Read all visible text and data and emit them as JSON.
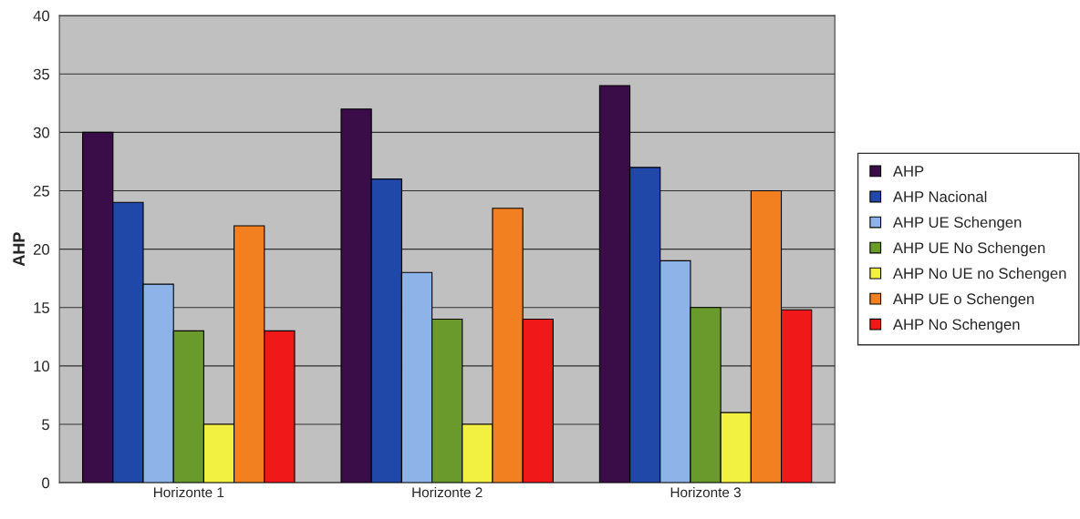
{
  "chart_data": {
    "type": "bar",
    "ylabel": "AHP",
    "categories": [
      "Horizonte 1",
      "Horizonte 2",
      "Horizonte 3"
    ],
    "series": [
      {
        "name": "AHP",
        "color": "#3a0c48",
        "values": [
          30,
          32,
          34
        ]
      },
      {
        "name": "AHP Nacional",
        "color": "#1f48a8",
        "values": [
          24,
          26,
          27
        ]
      },
      {
        "name": "AHP UE Schengen",
        "color": "#8db3e8",
        "values": [
          17,
          18,
          19
        ]
      },
      {
        "name": "AHP UE No Schengen",
        "color": "#6b9a2c",
        "values": [
          13,
          14,
          15
        ]
      },
      {
        "name": "AHP No UE no Schengen",
        "color": "#f2f040",
        "values": [
          5,
          5,
          6
        ]
      },
      {
        "name": "AHP UE o Schengen",
        "color": "#f28020",
        "values": [
          22,
          23.5,
          25
        ]
      },
      {
        "name": "AHP No Schengen",
        "color": "#f01818",
        "values": [
          13,
          14,
          14.8
        ]
      }
    ],
    "ylim": [
      0,
      40
    ],
    "yticks": [
      0,
      5,
      10,
      15,
      20,
      25,
      30,
      35,
      40
    ],
    "grid": "y",
    "legend": "right"
  }
}
